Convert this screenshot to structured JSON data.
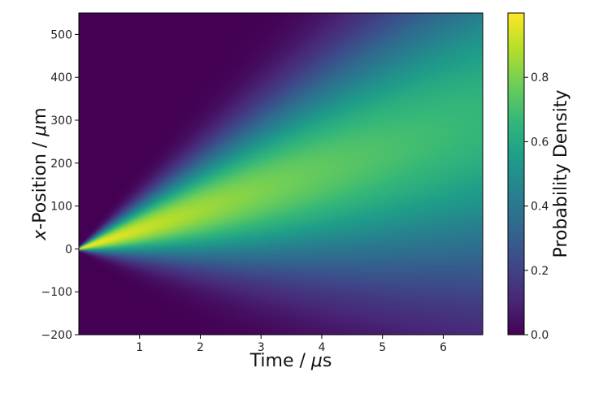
{
  "chart_data": {
    "type": "heatmap",
    "title": "",
    "xlabel": "Time / μs",
    "xlabel_parts": {
      "prefix": "Time / ",
      "italic": "μ",
      "suffix": "s"
    },
    "ylabel": "x-Position / μm",
    "ylabel_parts": {
      "italic": "x",
      "middle": "-Position / ",
      "italic2": "μ",
      "suffix": "m"
    },
    "xlim": [
      0,
      6.65
    ],
    "ylim": [
      -200,
      550
    ],
    "xticks": [
      1,
      2,
      3,
      4,
      5,
      6
    ],
    "xtick_labels": [
      "1",
      "2",
      "3",
      "4",
      "5",
      "6"
    ],
    "yticks": [
      -200,
      -100,
      0,
      100,
      200,
      300,
      400,
      500
    ],
    "ytick_labels": [
      "−200",
      "−100",
      "0",
      "100",
      "200",
      "300",
      "400",
      "500"
    ],
    "colorbar": {
      "label": "Probability Density",
      "range": [
        0,
        1.0
      ],
      "ticks": [
        0.0,
        0.2,
        0.4,
        0.6,
        0.8
      ],
      "tick_labels": [
        "0.0",
        "0.2",
        "0.4",
        "0.6",
        "0.8"
      ],
      "colormap": "viridis"
    },
    "model": {
      "description": "Drifting, spreading Gaussian density",
      "drift_um_per_us": 45,
      "sigma0_um": 2,
      "spread_um_per_us": 40,
      "peak_max": 1.0,
      "peak_floor": 0.5,
      "peak_decay_per_us": 0.17
    }
  },
  "colors": {
    "viridis": [
      "#440154",
      "#482878",
      "#3e4989",
      "#31688e",
      "#26828e",
      "#1f9e89",
      "#35b779",
      "#6ece58",
      "#b5de2b",
      "#fde725"
    ],
    "axis": "#000000"
  }
}
